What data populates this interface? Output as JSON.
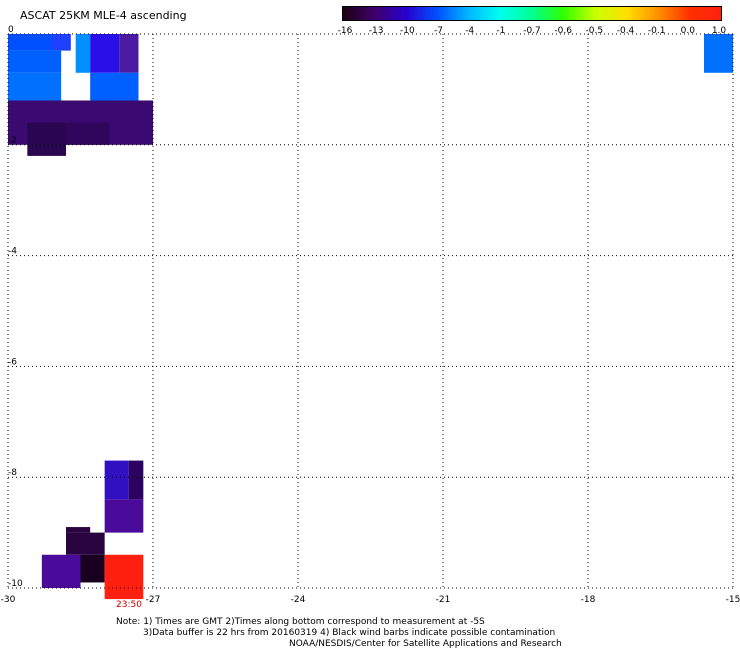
{
  "title": "ASCAT 25KM MLE-4 ascending",
  "colorbar": {
    "labels": [
      "-16",
      "-13",
      "-10",
      "-7",
      "-4",
      "-1",
      "-0.7",
      "-0.6",
      "-0.5",
      "-0.4",
      "-0.1",
      "0.0",
      "1.0"
    ],
    "colors": [
      "#1a0010",
      "#40006a",
      "#2800d0",
      "#0050ff",
      "#00b8ff",
      "#00ffee",
      "#00ff90",
      "#30ff00",
      "#c8ff00",
      "#ffe000",
      "#ff9000",
      "#ff3000",
      "#ff2010"
    ]
  },
  "axes": {
    "x_ticks": [
      "-30",
      "-27",
      "-24",
      "-21",
      "-18",
      "-15"
    ],
    "y_ticks": [
      "0",
      "-2",
      "-4",
      "-6",
      "-8",
      "-10"
    ]
  },
  "time_label": "23:50",
  "notes": {
    "line1": "Note: 1) Times are GMT 2)Times along bottom correspond to measurement at -5S",
    "line2": "3)Data buffer is 22 hrs from 20160319 4) Black wind barbs indicate possible contamination",
    "line3": "NOAA/NESDIS/Center for Satellite Applications and Research"
  },
  "map_data": {
    "type": "heatmap",
    "x_range": [
      -30,
      -15
    ],
    "y_range": [
      -10,
      0
    ],
    "cells": [
      {
        "lon0": -30,
        "lon1": -29.1,
        "lat0": -0.3,
        "lat1": 0,
        "color": "#0050ff"
      },
      {
        "lon0": -29.1,
        "lon1": -28.7,
        "lat0": -0.3,
        "lat1": 0,
        "color": "#1f40ff"
      },
      {
        "lon0": -28.6,
        "lon1": -28.3,
        "lat0": -0.7,
        "lat1": 0,
        "color": "#0090ff"
      },
      {
        "lon0": -28.3,
        "lon1": -27.7,
        "lat0": -0.7,
        "lat1": 0,
        "color": "#2a10e8"
      },
      {
        "lon0": -27.7,
        "lon1": -27.3,
        "lat0": -0.7,
        "lat1": 0,
        "color": "#4a1aa0"
      },
      {
        "lon0": -30,
        "lon1": -28.9,
        "lat0": -0.7,
        "lat1": -0.3,
        "color": "#0060ff"
      },
      {
        "lon0": -30,
        "lon1": -28.9,
        "lat0": -1.2,
        "lat1": -0.7,
        "color": "#0070ff"
      },
      {
        "lon0": -28.3,
        "lon1": -27.3,
        "lat0": -1.2,
        "lat1": -0.7,
        "color": "#0060ff"
      },
      {
        "lon0": -30,
        "lon1": -27,
        "lat0": -2.0,
        "lat1": -1.2,
        "color": "#3a0a70"
      },
      {
        "lon0": -29.6,
        "lon1": -28.8,
        "lat0": -2.2,
        "lat1": -1.6,
        "color": "#2a0550"
      },
      {
        "lon0": -28.8,
        "lon1": -27.9,
        "lat0": -2.0,
        "lat1": -1.6,
        "color": "#30065c"
      },
      {
        "lon0": -15.6,
        "lon1": -15,
        "lat0": -0.7,
        "lat1": 0,
        "color": "#0070ff"
      },
      {
        "lon0": -28.0,
        "lon1": -27.5,
        "lat0": -8.4,
        "lat1": -7.7,
        "color": "#3010c0"
      },
      {
        "lon0": -28.0,
        "lon1": -27.2,
        "lat0": -9.0,
        "lat1": -8.4,
        "color": "#4a0a9a"
      },
      {
        "lon0": -27.5,
        "lon1": -27.2,
        "lat0": -8.4,
        "lat1": -7.7,
        "color": "#2a0460"
      },
      {
        "lon0": -28.8,
        "lon1": -28.0,
        "lat0": -9.4,
        "lat1": -9.0,
        "color": "#2a0440"
      },
      {
        "lon0": -28.8,
        "lon1": -28.3,
        "lat0": -9.0,
        "lat1": -8.9,
        "color": "#2a0440"
      },
      {
        "lon0": -29.3,
        "lon1": -28.5,
        "lat0": -10.0,
        "lat1": -9.4,
        "color": "#4a0a9a"
      },
      {
        "lon0": -28.5,
        "lon1": -28.0,
        "lat0": -9.9,
        "lat1": -9.4,
        "color": "#1a0020"
      },
      {
        "lon0": -28.0,
        "lon1": -27.2,
        "lat0": -10.2,
        "lat1": -9.4,
        "color": "#ff2010"
      }
    ]
  }
}
